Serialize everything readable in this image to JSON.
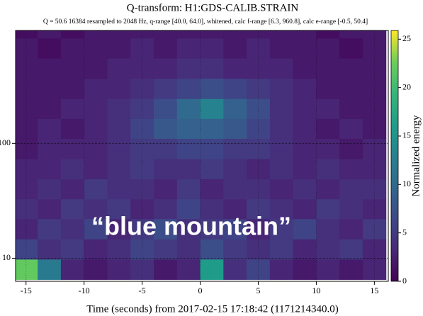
{
  "chart_data": {
    "type": "heatmap",
    "title": "Q-transform: H1:GDS-CALIB.STRAIN",
    "subtitle": "Q = 50.6 16384 resampled to 2048 Hz, q-range [40.0, 64.0], whitened, calc f-range [6.3, 960.8], calc e-range [-0.5, 50.4]",
    "x_label": "Time (seconds) from 2017-02-15 17:18:42 (1171214340.0)",
    "colorbar_label": "Normalized energy",
    "annotation": "“blue mountain”",
    "colormap": "viridis",
    "grid": true,
    "y_log": true,
    "x": [
      -15,
      -13,
      -11,
      -9,
      -7,
      -5,
      -3,
      -1,
      1,
      3,
      5,
      7,
      9,
      11,
      13,
      15
    ],
    "y": [
      8,
      12,
      18,
      27,
      40,
      60,
      90,
      135,
      200,
      300,
      450,
      680,
      1000
    ],
    "z": [
      [
        22,
        12,
        3,
        2,
        3,
        4,
        2,
        3,
        16,
        4,
        6,
        3,
        2,
        3,
        2,
        3
      ],
      [
        6,
        4,
        5,
        3,
        4,
        6,
        5,
        4,
        7,
        5,
        4,
        5,
        3,
        4,
        5,
        3
      ],
      [
        3,
        5,
        4,
        6,
        3,
        5,
        7,
        4,
        5,
        6,
        3,
        5,
        6,
        4,
        3,
        5
      ],
      [
        4,
        3,
        5,
        4,
        5,
        3,
        4,
        6,
        4,
        3,
        5,
        4,
        3,
        5,
        4,
        3
      ],
      [
        3,
        4,
        3,
        5,
        4,
        4,
        3,
        5,
        3,
        4,
        4,
        3,
        4,
        3,
        4,
        4
      ],
      [
        3,
        3,
        4,
        3,
        4,
        5,
        4,
        4,
        5,
        4,
        3,
        4,
        3,
        4,
        3,
        3
      ],
      [
        2,
        3,
        3,
        3,
        4,
        5,
        5,
        6,
        6,
        5,
        5,
        4,
        3,
        3,
        2,
        3
      ],
      [
        2,
        3,
        2,
        3,
        4,
        6,
        8,
        9,
        9,
        8,
        6,
        4,
        3,
        2,
        3,
        2
      ],
      [
        2,
        2,
        3,
        3,
        4,
        5,
        7,
        10,
        13,
        9,
        7,
        4,
        3,
        3,
        2,
        2
      ],
      [
        2,
        2,
        2,
        3,
        3,
        4,
        5,
        6,
        7,
        6,
        5,
        4,
        3,
        2,
        2,
        2
      ],
      [
        2,
        2,
        2,
        2,
        3,
        3,
        3,
        4,
        4,
        3,
        3,
        3,
        2,
        2,
        2,
        2
      ],
      [
        2,
        1,
        2,
        2,
        2,
        3,
        2,
        3,
        3,
        2,
        3,
        2,
        2,
        2,
        1,
        2
      ],
      [
        1,
        2,
        1,
        2,
        2,
        2,
        2,
        2,
        2,
        2,
        2,
        2,
        2,
        1,
        2,
        2
      ]
    ],
    "xlim": [
      -15.9,
      16.2
    ],
    "xticks": [
      -15,
      -10,
      -5,
      0,
      5,
      10,
      15
    ],
    "ylim": [
      6.3,
      960.8
    ],
    "yticks": [
      10,
      100
    ],
    "clim": [
      0,
      25.9
    ],
    "cticks": [
      0,
      5,
      10,
      15,
      20,
      25
    ]
  }
}
